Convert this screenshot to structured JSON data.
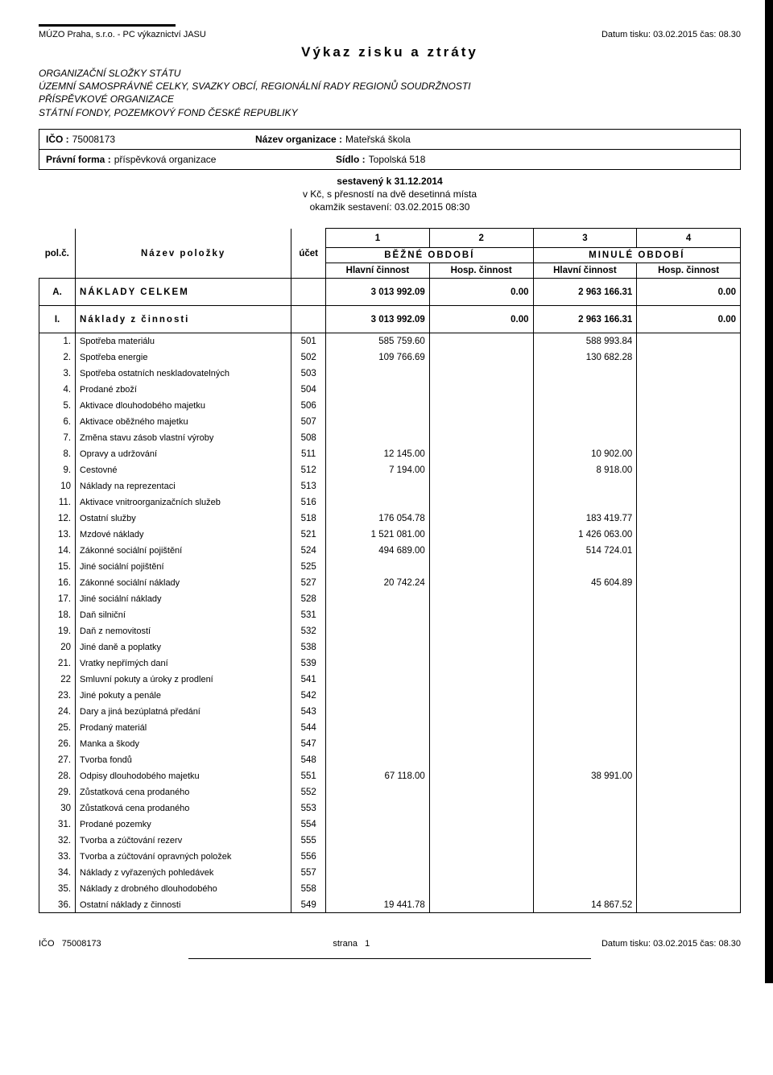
{
  "header": {
    "left": "MÚZO Praha, s.r.o. - PC výkaznictví JASU",
    "right": "Datum tisku: 03.02.2015 čas: 08.30",
    "title": "Výkaz zisku a ztráty",
    "sub1": "ORGANIZAČNÍ SLOŽKY STÁTU",
    "sub2": "ÚZEMNÍ SAMOSPRÁVNÉ CELKY, SVAZKY OBCÍ, REGIONÁLNÍ RADY REGIONŮ SOUDRŽNOSTI",
    "sub3": "PŘÍSPĚVKOVÉ ORGANIZACE",
    "sub4": "STÁTNÍ FONDY, POZEMKOVÝ FOND ČESKÉ REPUBLIKY"
  },
  "org": {
    "ico_label": "IČO :",
    "ico": "75008173",
    "name_label": "Název organizace :",
    "name": "Mateřská škola",
    "form_label": "Právní forma :",
    "form": "příspěvková organizace",
    "seat_label": "Sídlo :",
    "seat": "Topolská 518"
  },
  "meta": {
    "line1": "sestavený k 31.12.2014",
    "line2": "v Kč, s přesností na dvě desetinná místa",
    "line3": "okamžik sestavení: 03.02.2015 08:30"
  },
  "thead": {
    "polc": "pol.č.",
    "nazev": "Název položky",
    "ucet": "účet",
    "c1": "1",
    "c2": "2",
    "c3": "3",
    "c4": "4",
    "bezne": "BĚŽNÉ OBDOBÍ",
    "minule": "MINULÉ OBDOBÍ",
    "hlavni": "Hlavní činnost",
    "hosp": "Hosp. činnost"
  },
  "sections": [
    {
      "polc": "A.",
      "name": "NÁKLADY CELKEM",
      "v1": "3 013 992.09",
      "v2": "0.00",
      "v3": "2 963 166.31",
      "v4": "0.00"
    },
    {
      "polc": "I.",
      "name": "Náklady z činnosti",
      "v1": "3 013 992.09",
      "v2": "0.00",
      "v3": "2 963 166.31",
      "v4": "0.00"
    }
  ],
  "rows": [
    {
      "n": "1.",
      "name": "Spotřeba materiálu",
      "ucet": "501",
      "v1": "585 759.60",
      "v3": "588 993.84"
    },
    {
      "n": "2.",
      "name": "Spotřeba energie",
      "ucet": "502",
      "v1": "109 766.69",
      "v3": "130 682.28"
    },
    {
      "n": "3.",
      "name": "Spotřeba ostatních neskladovatelných",
      "ucet": "503"
    },
    {
      "n": "4.",
      "name": "Prodané zboží",
      "ucet": "504"
    },
    {
      "n": "5.",
      "name": "Aktivace dlouhodobého majetku",
      "ucet": "506"
    },
    {
      "n": "6.",
      "name": "Aktivace oběžného majetku",
      "ucet": "507"
    },
    {
      "n": "7.",
      "name": "Změna stavu zásob vlastní výroby",
      "ucet": "508"
    },
    {
      "n": "8.",
      "name": "Opravy a udržování",
      "ucet": "511",
      "v1": "12 145.00",
      "v3": "10 902.00"
    },
    {
      "n": "9.",
      "name": "Cestovné",
      "ucet": "512",
      "v1": "7 194.00",
      "v3": "8 918.00"
    },
    {
      "n": "10",
      "name": "Náklady na reprezentaci",
      "ucet": "513"
    },
    {
      "n": "11.",
      "name": "Aktivace vnitroorganizačních služeb",
      "ucet": "516"
    },
    {
      "n": "12.",
      "name": "Ostatní služby",
      "ucet": "518",
      "v1": "176 054.78",
      "v3": "183 419.77"
    },
    {
      "n": "13.",
      "name": "Mzdové náklady",
      "ucet": "521",
      "v1": "1 521 081.00",
      "v3": "1 426 063.00"
    },
    {
      "n": "14.",
      "name": "Zákonné sociální pojištění",
      "ucet": "524",
      "v1": "494 689.00",
      "v3": "514 724.01"
    },
    {
      "n": "15.",
      "name": "Jiné sociální pojištění",
      "ucet": "525"
    },
    {
      "n": "16.",
      "name": "Zákonné sociální náklady",
      "ucet": "527",
      "v1": "20 742.24",
      "v3": "45 604.89"
    },
    {
      "n": "17.",
      "name": "Jiné sociální náklady",
      "ucet": "528"
    },
    {
      "n": "18.",
      "name": "Daň silniční",
      "ucet": "531"
    },
    {
      "n": "19.",
      "name": "Daň z nemovitostí",
      "ucet": "532"
    },
    {
      "n": "20",
      "name": "Jiné daně a poplatky",
      "ucet": "538"
    },
    {
      "n": "21.",
      "name": "Vratky nepřímých daní",
      "ucet": "539"
    },
    {
      "n": "22",
      "name": "Smluvní pokuty a úroky z prodlení",
      "ucet": "541"
    },
    {
      "n": "23.",
      "name": "Jiné pokuty a penále",
      "ucet": "542"
    },
    {
      "n": "24.",
      "name": "Dary a jiná bezúplatná předání",
      "ucet": "543"
    },
    {
      "n": "25.",
      "name": "Prodaný materiál",
      "ucet": "544"
    },
    {
      "n": "26.",
      "name": "Manka a škody",
      "ucet": "547"
    },
    {
      "n": "27.",
      "name": "Tvorba fondů",
      "ucet": "548"
    },
    {
      "n": "28.",
      "name": "Odpisy dlouhodobého majetku",
      "ucet": "551",
      "v1": "67 118.00",
      "v3": "38 991.00"
    },
    {
      "n": "29.",
      "name": "Zůstatková cena prodaného",
      "ucet": "552"
    },
    {
      "n": "30",
      "name": "Zůstatková cena prodaného",
      "ucet": "553"
    },
    {
      "n": "31.",
      "name": "Prodané pozemky",
      "ucet": "554"
    },
    {
      "n": "32.",
      "name": "Tvorba a zúčtování rezerv",
      "ucet": "555"
    },
    {
      "n": "33.",
      "name": "Tvorba a zúčtování opravných položek",
      "ucet": "556"
    },
    {
      "n": "34.",
      "name": "Náklady z vyřazených pohledávek",
      "ucet": "557"
    },
    {
      "n": "35.",
      "name": "Náklady z drobného dlouhodobého",
      "ucet": "558"
    },
    {
      "n": "36.",
      "name": "Ostatní náklady z činnosti",
      "ucet": "549",
      "v1": "19 441.78",
      "v3": "14 867.52"
    }
  ],
  "footer": {
    "left_label": "IČO",
    "left_val": "75008173",
    "mid_label": "strana",
    "mid_val": "1",
    "right": "Datum tisku: 03.02.2015 čas: 08.30"
  }
}
